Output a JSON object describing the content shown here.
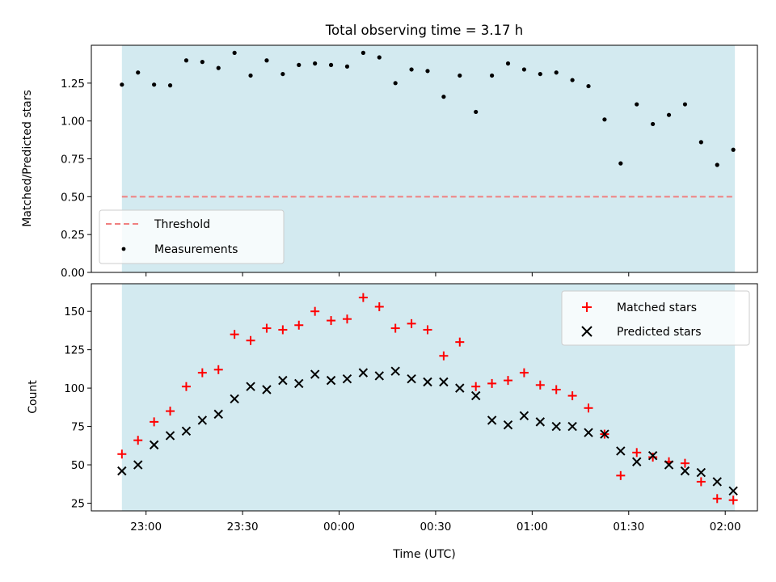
{
  "title": "Total observing time = 3.17 h",
  "colors": {
    "shade": "#d3eaf0",
    "threshold": "#f08080",
    "matched": "#ff0000",
    "predicted": "#000000",
    "measurement": "#000000"
  },
  "chart_data": [
    {
      "type": "scatter",
      "panel": "top",
      "ylabel": "Matched/Predicted stars",
      "ylim": [
        0,
        1.5
      ],
      "yticks": [
        0.0,
        0.25,
        0.5,
        0.75,
        1.0,
        1.25
      ],
      "ytick_labels": [
        "0.00",
        "0.25",
        "0.50",
        "0.75",
        "1.00",
        "1.25"
      ],
      "xticks_minutes": [
        0,
        30,
        60,
        90,
        120,
        150
      ],
      "xlim_minutes": [
        -17,
        190
      ],
      "observing_window_minutes": [
        -7.5,
        183
      ],
      "legend_position": "lower left",
      "threshold": {
        "name": "Threshold",
        "value": 0.5
      },
      "series": [
        {
          "name": "Measurements",
          "x_minutes": [
            -7.5,
            -2.5,
            2.5,
            7.5,
            12.5,
            17.5,
            22.5,
            27.5,
            32.5,
            37.5,
            42.5,
            47.5,
            52.5,
            57.5,
            62.5,
            67.5,
            72.5,
            77.5,
            82.5,
            87.5,
            92.5,
            97.5,
            102.5,
            107.5,
            112.5,
            117.5,
            122.5,
            127.5,
            132.5,
            137.5,
            142.5,
            147.5,
            152.5,
            157.5,
            162.5,
            167.5,
            172.5,
            177.5,
            182.5
          ],
          "y": [
            1.24,
            1.32,
            1.24,
            1.235,
            1.4,
            1.39,
            1.35,
            1.45,
            1.3,
            1.4,
            1.31,
            1.37,
            1.38,
            1.37,
            1.36,
            1.45,
            1.42,
            1.25,
            1.34,
            1.33,
            1.16,
            1.3,
            1.06,
            1.3,
            1.38,
            1.34,
            1.31,
            1.32,
            1.27,
            1.23,
            1.01,
            0.72,
            1.11,
            0.98,
            1.04,
            1.11,
            0.86,
            0.71,
            0.81
          ]
        }
      ]
    },
    {
      "type": "scatter",
      "panel": "bottom",
      "xlabel": "Time (UTC)",
      "ylabel": "Count",
      "ylim": [
        20,
        168
      ],
      "yticks": [
        25,
        50,
        75,
        100,
        125,
        150
      ],
      "ytick_labels": [
        "25",
        "50",
        "75",
        "100",
        "125",
        "150"
      ],
      "xticks_minutes": [
        0,
        30,
        60,
        90,
        120,
        150,
        180
      ],
      "xtick_labels": [
        "23:00",
        "23:30",
        "00:00",
        "00:30",
        "01:00",
        "01:30",
        "02:00"
      ],
      "xlim_minutes": [
        -17,
        190
      ],
      "observing_window_minutes": [
        -7.5,
        183
      ],
      "legend_position": "upper right",
      "series": [
        {
          "name": "Matched stars",
          "marker": "+",
          "x_minutes": [
            -7.5,
            -2.5,
            2.5,
            7.5,
            12.5,
            17.5,
            22.5,
            27.5,
            32.5,
            37.5,
            42.5,
            47.5,
            52.5,
            57.5,
            62.5,
            67.5,
            72.5,
            77.5,
            82.5,
            87.5,
            92.5,
            97.5,
            102.5,
            107.5,
            112.5,
            117.5,
            122.5,
            127.5,
            132.5,
            137.5,
            142.5,
            147.5,
            152.5,
            157.5,
            162.5,
            167.5,
            172.5,
            177.5,
            182.5
          ],
          "y": [
            57,
            66,
            78,
            85,
            101,
            110,
            112,
            135,
            131,
            139,
            138,
            141,
            150,
            144,
            145,
            159,
            153,
            139,
            142,
            138,
            121,
            130,
            101,
            103,
            105,
            110,
            102,
            99,
            95,
            87,
            70,
            43,
            58,
            55,
            52,
            51,
            39,
            28,
            27
          ]
        },
        {
          "name": "Predicted stars",
          "marker": "x",
          "x_minutes": [
            -7.5,
            -2.5,
            2.5,
            7.5,
            12.5,
            17.5,
            22.5,
            27.5,
            32.5,
            37.5,
            42.5,
            47.5,
            52.5,
            57.5,
            62.5,
            67.5,
            72.5,
            77.5,
            82.5,
            87.5,
            92.5,
            97.5,
            102.5,
            107.5,
            112.5,
            117.5,
            122.5,
            127.5,
            132.5,
            137.5,
            142.5,
            147.5,
            152.5,
            157.5,
            162.5,
            167.5,
            172.5,
            177.5,
            182.5
          ],
          "y": [
            46,
            50,
            63,
            69,
            72,
            79,
            83,
            93,
            101,
            99,
            105,
            103,
            109,
            105,
            106,
            110,
            108,
            111,
            106,
            104,
            104,
            100,
            95,
            79,
            76,
            82,
            78,
            75,
            75,
            71,
            70,
            59,
            52,
            56,
            50,
            46,
            45,
            39,
            33
          ]
        }
      ]
    }
  ]
}
